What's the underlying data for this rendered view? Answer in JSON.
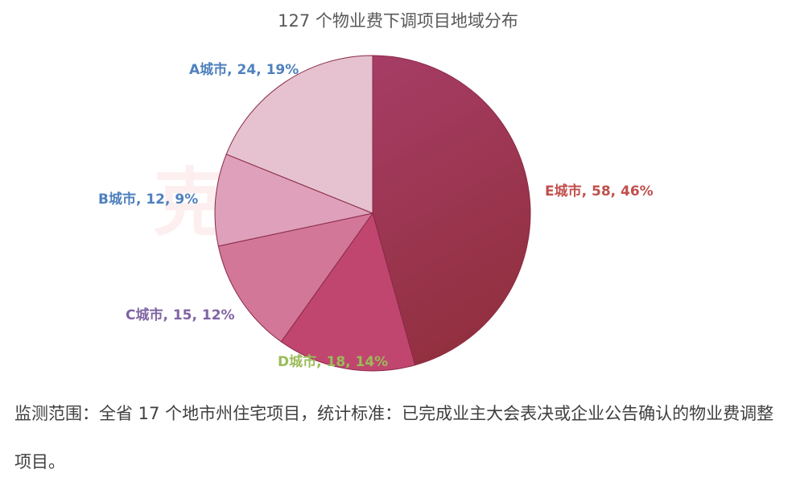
{
  "title": "127 个物业费下调项目地域分布",
  "watermark": "克而瑞物管",
  "chart_data": {
    "type": "pie",
    "title": "127 个物业费下调项目地域分布",
    "total": 127,
    "slices": [
      {
        "name": "E城市",
        "value": 58,
        "percent": "46%",
        "label": "E城市, 58, 46%",
        "color": "#9c3352",
        "label_color": "#c0504d"
      },
      {
        "name": "D城市",
        "value": 18,
        "percent": "14%",
        "label": "D城市, 18, 14%",
        "color": "#c0466f",
        "label_color": "#9bbb59"
      },
      {
        "name": "C城市",
        "value": 15,
        "percent": "12%",
        "label": "C城市, 15, 12%",
        "color": "#d27798",
        "label_color": "#8064a2"
      },
      {
        "name": "B城市",
        "value": 12,
        "percent": "9%",
        "label": "B城市, 12, 9%",
        "color": "#dea0bb",
        "label_color": "#4f81bd"
      },
      {
        "name": "A城市",
        "value": 24,
        "percent": "19%",
        "label": "A城市, 24, 19%",
        "color": "#e6c2d0",
        "label_color": "#4f81bd"
      }
    ]
  },
  "caption": "监测范围：全省 17 个地市州住宅项目，统计标准：已完成业主大会表决或企业公告确认的物业费调整项目。"
}
